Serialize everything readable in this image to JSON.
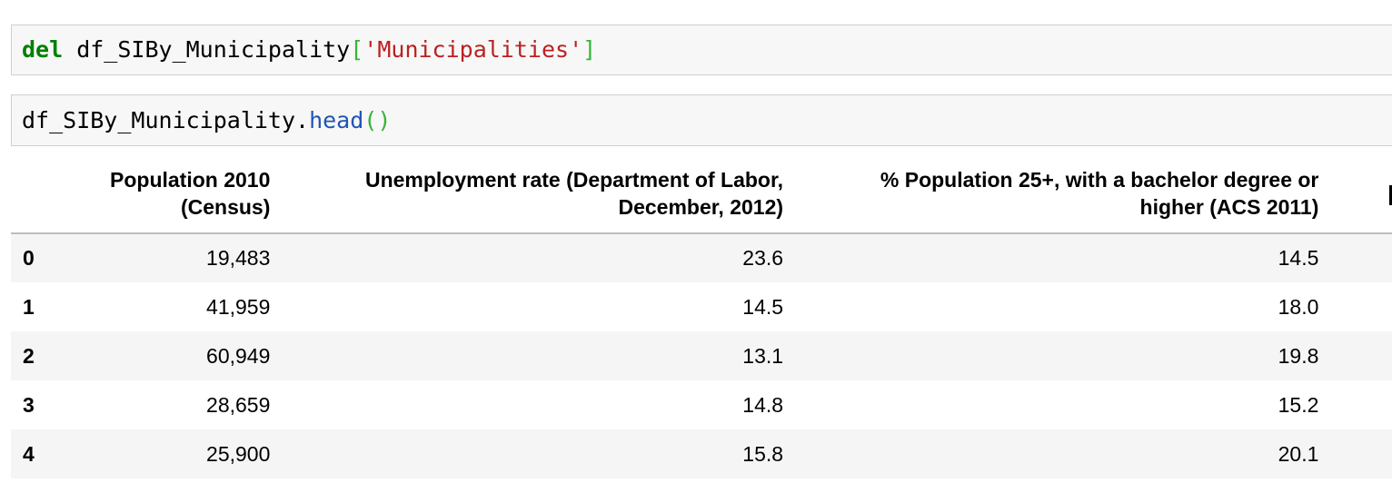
{
  "cells": [
    {
      "tokens": [
        {
          "text": "del",
          "kind": "kw"
        },
        {
          "text": " df_SIBy_Municipality",
          "kind": "plain"
        },
        {
          "text": "[",
          "kind": "br"
        },
        {
          "text": "'Municipalities'",
          "kind": "str"
        },
        {
          "text": "]",
          "kind": "br"
        }
      ]
    },
    {
      "tokens": [
        {
          "text": "df_SIBy_Municipality.",
          "kind": "plain"
        },
        {
          "text": "head",
          "kind": "fn"
        },
        {
          "text": "()",
          "kind": "br"
        }
      ]
    }
  ],
  "table": {
    "columns": [
      [
        "Population 2010",
        "(Census)"
      ],
      [
        "Unemployment rate (Department of Labor,",
        "December, 2012)"
      ],
      [
        "% Population 25+, with a bachelor degree or",
        "higher (ACS 2011)"
      ]
    ],
    "rows": [
      {
        "index": "0",
        "values": [
          "19,483",
          "23.6",
          "14.5"
        ]
      },
      {
        "index": "1",
        "values": [
          "41,959",
          "14.5",
          "18.0"
        ]
      },
      {
        "index": "2",
        "values": [
          "60,949",
          "13.1",
          "19.8"
        ]
      },
      {
        "index": "3",
        "values": [
          "28,659",
          "14.8",
          "15.2"
        ]
      },
      {
        "index": "4",
        "values": [
          "25,900",
          "15.8",
          "20.1"
        ]
      }
    ]
  }
}
